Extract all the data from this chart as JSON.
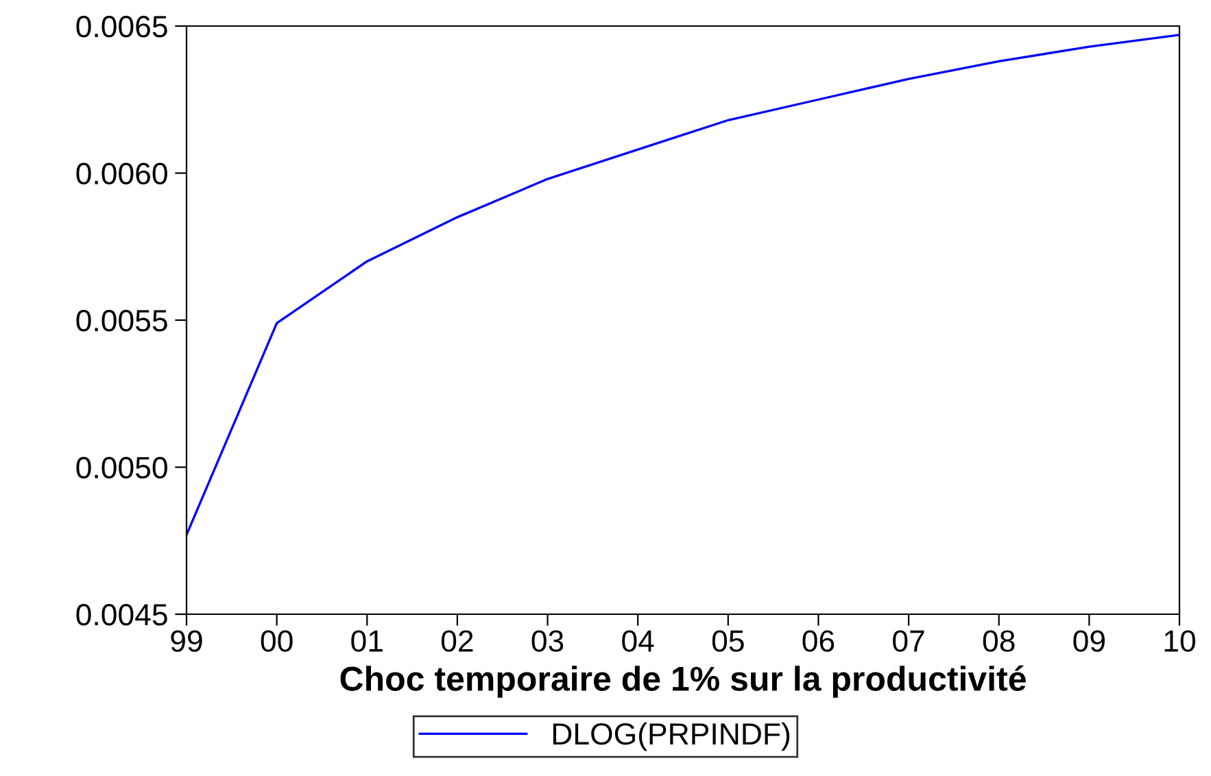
{
  "chart_data": {
    "type": "line",
    "xlabel": "Choc temporaire de 1% sur la productivité",
    "categories": [
      "99",
      "00",
      "01",
      "02",
      "03",
      "04",
      "05",
      "06",
      "07",
      "08",
      "09",
      "10"
    ],
    "series": [
      {
        "name": "DLOG(PRPINDF)",
        "color": "#0000ff",
        "values": [
          0.00477,
          0.00549,
          0.0057,
          0.00585,
          0.00598,
          0.00608,
          0.00618,
          0.00625,
          0.00632,
          0.00638,
          0.00643,
          0.00647
        ]
      }
    ],
    "ylim": [
      0.0045,
      0.0065
    ],
    "yticks": [
      {
        "value": 0.0045,
        "label": "0.0045"
      },
      {
        "value": 0.005,
        "label": "0.0050"
      },
      {
        "value": 0.0055,
        "label": "0.0055"
      },
      {
        "value": 0.006,
        "label": "0.0060"
      },
      {
        "value": 0.0065,
        "label": "0.0065"
      }
    ],
    "grid": false,
    "legend": "bottom",
    "line_style": "solid",
    "marker": "none"
  }
}
